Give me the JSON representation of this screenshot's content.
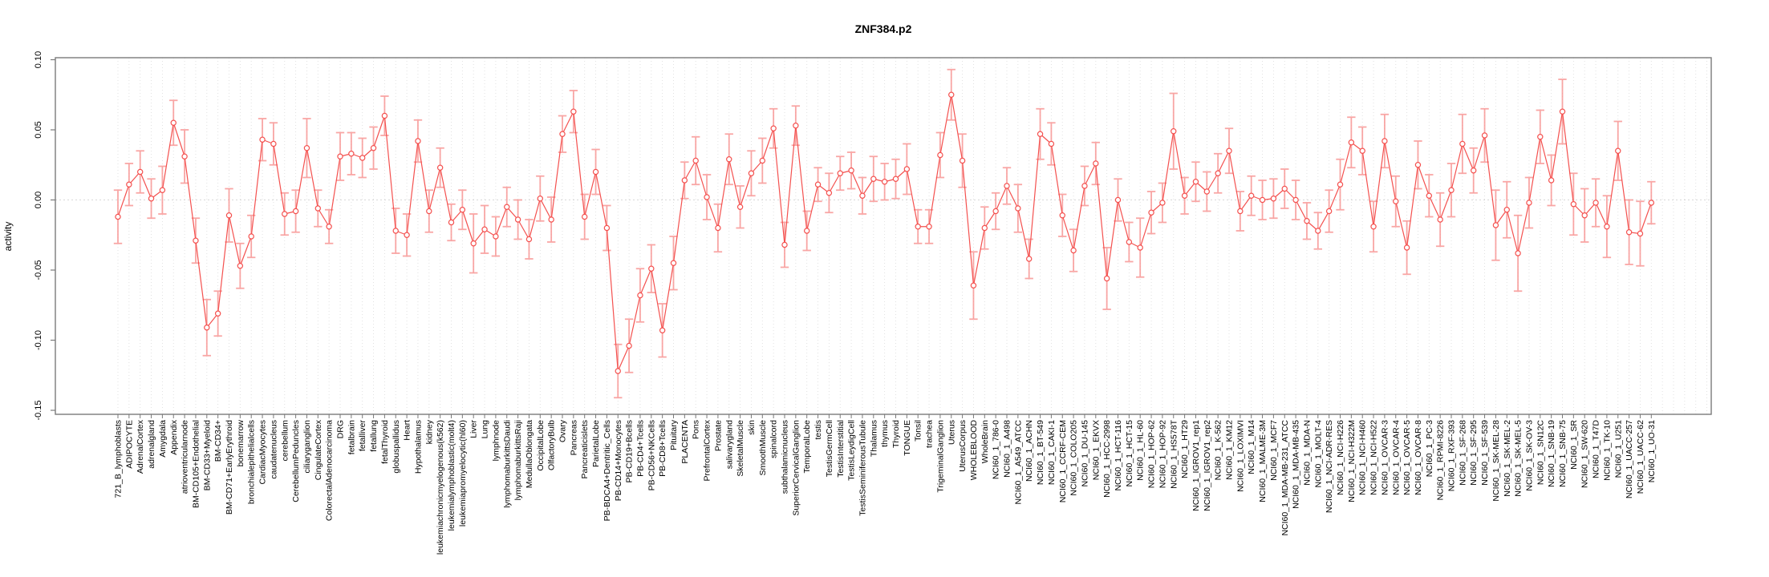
{
  "title": "ZNF384.p2",
  "y_axis": {
    "label": "activity",
    "tick_labels": [
      "0.10",
      "0.05",
      "0.00",
      "-0.05",
      "-0.10",
      "-0.15"
    ]
  },
  "colors": {
    "series_line": "#f4514f",
    "point_stroke": "#f4514f",
    "point_fill": "#ffffff",
    "error_bar": "#f8918f",
    "grid_line": "#dedede",
    "zero_line": "#d8d8d8",
    "box": "#7a7a7a",
    "text": "#000000"
  },
  "chart_data": {
    "type": "line",
    "title": "ZNF384.p2",
    "xlabel": "",
    "ylabel": "activity",
    "ylim": [
      -0.153,
      0.101
    ],
    "yticks": [
      0.1,
      0.05,
      0.0,
      -0.05,
      -0.1,
      -0.15
    ],
    "grid": "vertical-dotted",
    "legend": "none",
    "series_name": "activity",
    "error_bars": true,
    "categories": [
      "721_B_lymphoblasts",
      "ADIPOCYTE",
      "AdrenalCortex",
      "adrenalgland",
      "Amygdala",
      "Appendix",
      "atrioventricularnode",
      "BM-CD105+Endothelial",
      "BM-CD33+Myeloid",
      "BM-CD34+",
      "BM-CD71+EarlyErythroid",
      "bonemarrow",
      "bronchialepithelialcells",
      "CardiacMyocytes",
      "caudatenucleus",
      "cerebellum",
      "CerebellumPeduncles",
      "ciliaryganglion",
      "CingulateCortex",
      "ColorectalAdenocarcinoma",
      "DRG",
      "fetalbrain",
      "fetalliver",
      "fetallung",
      "fetalThyroid",
      "globuspallidus",
      "Heart",
      "Hypothalamus",
      "kidney",
      "leukemiachronicmyelogenous(k562)",
      "leukemialymphoblastic(molt4)",
      "leukemiapromyelocytic(hl60)",
      "Liver",
      "Lung",
      "lymphnode",
      "lymphomaburkittsDaudi",
      "lymphomaburkittsRaji",
      "MedullaOblongata",
      "OccipitalLobe",
      "OlfactoryBulb",
      "Ovary",
      "Pancreas",
      "Pancreaticislets",
      "ParietalLobe",
      "PB-BDCA4+Dentritic_Cells",
      "PB-CD14+Monocytes",
      "PB-CD19+Bcells",
      "PB-CD4+Tcells",
      "PB-CD56+NKCells",
      "PB-CD8+Tcells",
      "Pituitary",
      "PLACENTA",
      "Pons",
      "PrefrontalCortex",
      "Prostate",
      "salivarygland",
      "SkeletalMuscle",
      "skin",
      "SmoothMuscle",
      "spinalcord",
      "subthalamicnucleus",
      "SuperiorCervicalGanglion",
      "TemporalLobe",
      "testis",
      "TestisGermCell",
      "TestisInterstitial",
      "TestisLeydigCell",
      "TestisSeminiferousTubule",
      "Thalamus",
      "thymus",
      "Thyroid",
      "TONGUE",
      "Tonsil",
      "trachea",
      "TrigeminalGanglion",
      "Uterus",
      "UterusCorpus",
      "WHOLEBLOOD",
      "WholeBrain",
      "NCI60_1_786-0",
      "NCI60_1_A498",
      "NCI60_1_A549_ATCC",
      "NCI60_1_ACHN",
      "NCI60_1_BT-549",
      "NCI60_1_CAKI-1",
      "NCI60_1_CCRF-CEM",
      "NCI60_1_COLO205",
      "NCI60_1_DU-145",
      "NCI60_1_EKVX",
      "NCI60_1_HCC-2998",
      "NCI60_1_HCT-116",
      "NCI60_1_HCT-15",
      "NCI60_1_HL-60",
      "NCI60_1_HOP-62",
      "NCI60_1_HOP-92",
      "NCI60_1_HS578T",
      "NCI60_1_HT29",
      "NCI60_1_IGROV1_rep1",
      "NCI60_1_IGROV1_rep2",
      "NCI60_1_K-562",
      "NCI60_1_KM12",
      "NCI60_1_LOXIMVI",
      "NCI60_1_M14",
      "NCI60_1_MALME-3M",
      "NCI60_1_MCF7",
      "NCI60_1_MDA-MB-231_ATCC",
      "NCI60_1_MDA-MB-435",
      "NCI60_1_MDA-N",
      "NCI60_1_MOLT-4",
      "NCI60_1_NCI-ADR-RES",
      "NCI60_1_NCI-H226",
      "NCI60_1_NCI-H322M",
      "NCI60_1_NCI-H460",
      "NCI60_1_NCI-H522",
      "NCI60_1_OVCAR-3",
      "NCI60_1_OVCAR-4",
      "NCI60_1_OVCAR-5",
      "NCI60_1_OVCAR-8",
      "NCI60_1_PC-3",
      "NCI60_1_RPMI-8226",
      "NCI60_1_RXF-393",
      "NCI60_1_SF-268",
      "NCI60_1_SF-295",
      "NCI60_1_SF-539",
      "NCI60_1_SK-MEL-28",
      "NCI60_1_SK-MEL-2",
      "NCI60_1_SK-MEL-5",
      "NCI60_1_SK-OV-3",
      "NCI60_1_SN12C",
      "NCI60_1_SNB-19",
      "NCI60_1_SNB-75",
      "NCI60_1_SR",
      "NCI60_1_SW-620",
      "NCI60_1_T47D",
      "NCI60_1_TK-10",
      "NCI60_1_U251",
      "NCI60_1_UACC-257",
      "NCI60_1_UACC-62",
      "NCI60_1_UO-31"
    ],
    "values": [
      -0.012,
      0.011,
      0.02,
      0.001,
      0.007,
      0.055,
      0.031,
      -0.029,
      -0.091,
      -0.081,
      -0.011,
      -0.047,
      -0.026,
      0.043,
      0.04,
      -0.01,
      -0.008,
      0.037,
      -0.006,
      -0.019,
      0.031,
      0.033,
      0.03,
      0.037,
      0.06,
      -0.022,
      -0.025,
      0.042,
      -0.008,
      0.023,
      -0.016,
      -0.007,
      -0.031,
      -0.021,
      -0.026,
      -0.005,
      -0.014,
      -0.028,
      0.001,
      -0.014,
      0.047,
      0.063,
      -0.012,
      0.02,
      -0.02,
      -0.122,
      -0.104,
      -0.068,
      -0.049,
      -0.093,
      -0.045,
      0.014,
      0.028,
      0.002,
      -0.02,
      0.029,
      -0.005,
      0.019,
      0.028,
      0.051,
      -0.032,
      0.053,
      -0.022,
      0.011,
      0.005,
      0.019,
      0.021,
      0.003,
      0.015,
      0.013,
      0.015,
      0.022,
      -0.019,
      -0.019,
      0.032,
      0.075,
      0.028,
      -0.061,
      -0.02,
      -0.008,
      0.01,
      -0.006,
      -0.042,
      0.047,
      0.04,
      -0.011,
      -0.036,
      0.01,
      0.026,
      -0.056,
      0.0,
      -0.03,
      -0.034,
      -0.009,
      -0.002,
      0.049,
      0.003,
      0.013,
      0.006,
      0.019,
      0.035,
      -0.008,
      0.003,
      0.0,
      0.001,
      0.008,
      0.0,
      -0.015,
      -0.022,
      -0.008,
      0.011,
      0.041,
      0.035,
      -0.019,
      0.042,
      -0.001,
      -0.034,
      0.025,
      0.003,
      -0.014,
      0.007,
      0.04,
      0.021,
      0.046,
      -0.018,
      -0.007,
      -0.038,
      -0.002,
      0.045,
      0.014,
      0.063,
      -0.003,
      -0.011,
      -0.002,
      -0.019,
      0.035,
      -0.023,
      -0.024,
      -0.002
    ],
    "errors": [
      0.019,
      0.015,
      0.015,
      0.014,
      0.017,
      0.016,
      0.019,
      0.016,
      0.02,
      0.016,
      0.019,
      0.016,
      0.015,
      0.015,
      0.015,
      0.015,
      0.015,
      0.021,
      0.013,
      0.012,
      0.017,
      0.015,
      0.014,
      0.015,
      0.014,
      0.016,
      0.015,
      0.015,
      0.015,
      0.014,
      0.013,
      0.014,
      0.021,
      0.017,
      0.014,
      0.014,
      0.014,
      0.014,
      0.016,
      0.016,
      0.013,
      0.015,
      0.016,
      0.016,
      0.016,
      0.019,
      0.019,
      0.019,
      0.017,
      0.019,
      0.019,
      0.013,
      0.017,
      0.016,
      0.017,
      0.018,
      0.015,
      0.016,
      0.016,
      0.014,
      0.016,
      0.014,
      0.014,
      0.012,
      0.014,
      0.012,
      0.013,
      0.013,
      0.016,
      0.013,
      0.014,
      0.018,
      0.012,
      0.012,
      0.016,
      0.018,
      0.019,
      0.024,
      0.015,
      0.013,
      0.013,
      0.017,
      0.014,
      0.018,
      0.015,
      0.015,
      0.015,
      0.014,
      0.015,
      0.022,
      0.015,
      0.014,
      0.021,
      0.015,
      0.014,
      0.027,
      0.013,
      0.014,
      0.014,
      0.014,
      0.016,
      0.014,
      0.014,
      0.014,
      0.014,
      0.014,
      0.014,
      0.013,
      0.013,
      0.015,
      0.018,
      0.018,
      0.017,
      0.018,
      0.019,
      0.018,
      0.019,
      0.017,
      0.015,
      0.019,
      0.019,
      0.021,
      0.016,
      0.019,
      0.025,
      0.02,
      0.027,
      0.018,
      0.019,
      0.018,
      0.023,
      0.022,
      0.019,
      0.017,
      0.022,
      0.021,
      0.023,
      0.023,
      0.015
    ]
  }
}
